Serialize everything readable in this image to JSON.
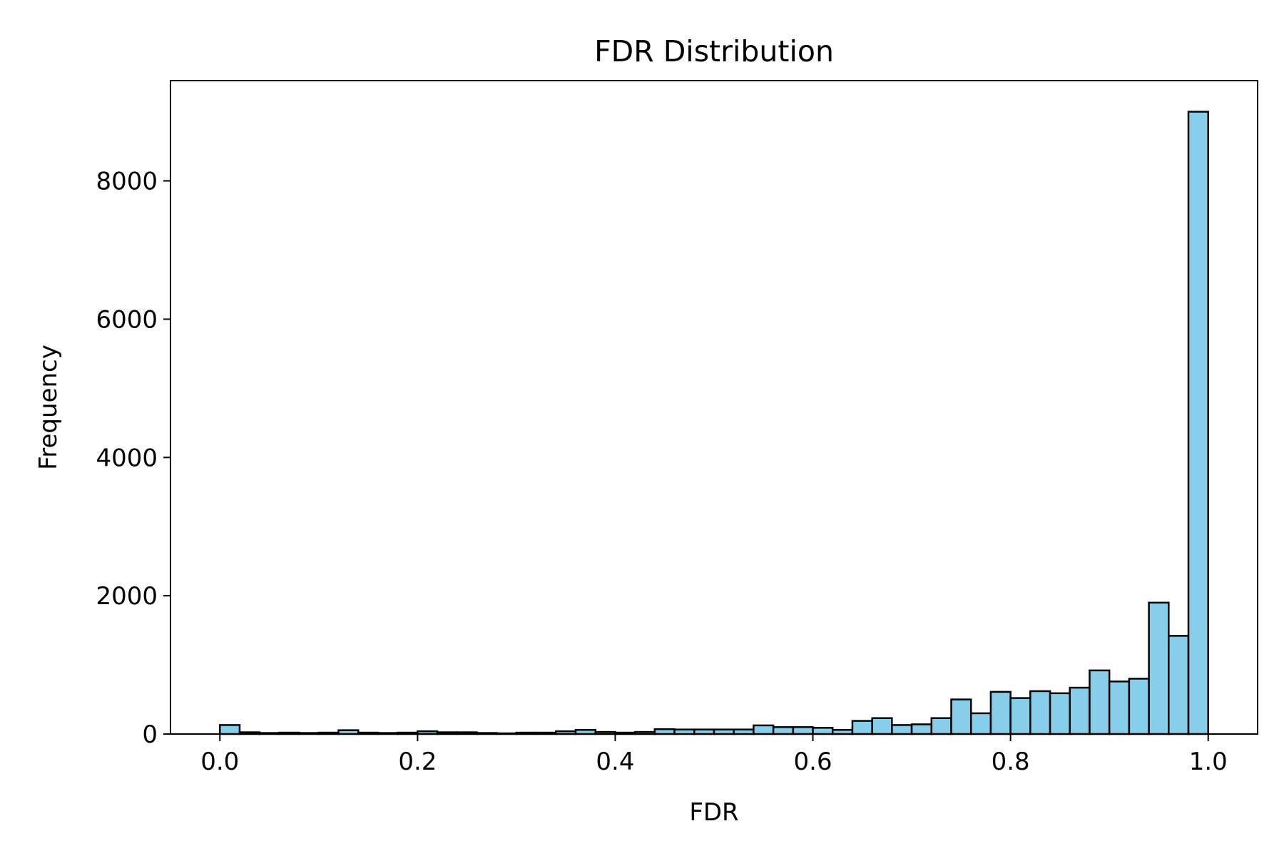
{
  "chart_data": {
    "type": "bar",
    "title": "FDR Distribution",
    "xlabel": "FDR",
    "ylabel": "Frequency",
    "xlim": [
      -0.05,
      1.05
    ],
    "ylim": [
      0,
      9450
    ],
    "x_ticks": [
      0.0,
      0.2,
      0.4,
      0.6,
      0.8,
      1.0
    ],
    "x_tick_labels": [
      "0.0",
      "0.2",
      "0.4",
      "0.6",
      "0.8",
      "1.0"
    ],
    "y_ticks": [
      0,
      2000,
      4000,
      6000,
      8000
    ],
    "y_tick_labels": [
      "0",
      "2000",
      "4000",
      "6000",
      "8000"
    ],
    "bin_edges": [
      0.0,
      0.02,
      0.04,
      0.06,
      0.08,
      0.1,
      0.12,
      0.14,
      0.16,
      0.18,
      0.2,
      0.22,
      0.24,
      0.26,
      0.28,
      0.3,
      0.32,
      0.34,
      0.36,
      0.38,
      0.4,
      0.42,
      0.44,
      0.46,
      0.48,
      0.5,
      0.52,
      0.54,
      0.56,
      0.58,
      0.6,
      0.62,
      0.64,
      0.66,
      0.68,
      0.7,
      0.72,
      0.74,
      0.76,
      0.78,
      0.8,
      0.82,
      0.84,
      0.86,
      0.88,
      0.9,
      0.92,
      0.94,
      0.96,
      0.98,
      1.0
    ],
    "values": [
      130,
      25,
      15,
      20,
      15,
      20,
      55,
      20,
      15,
      20,
      40,
      25,
      25,
      15,
      10,
      20,
      20,
      40,
      60,
      30,
      20,
      30,
      70,
      65,
      65,
      65,
      65,
      125,
      100,
      100,
      90,
      60,
      190,
      230,
      130,
      140,
      230,
      500,
      300,
      610,
      520,
      620,
      590,
      670,
      920,
      760,
      800,
      1900,
      1420,
      9000
    ],
    "bar_color": "#87CEEB",
    "edge_color": "#000000",
    "grid": false,
    "legend": false
  }
}
